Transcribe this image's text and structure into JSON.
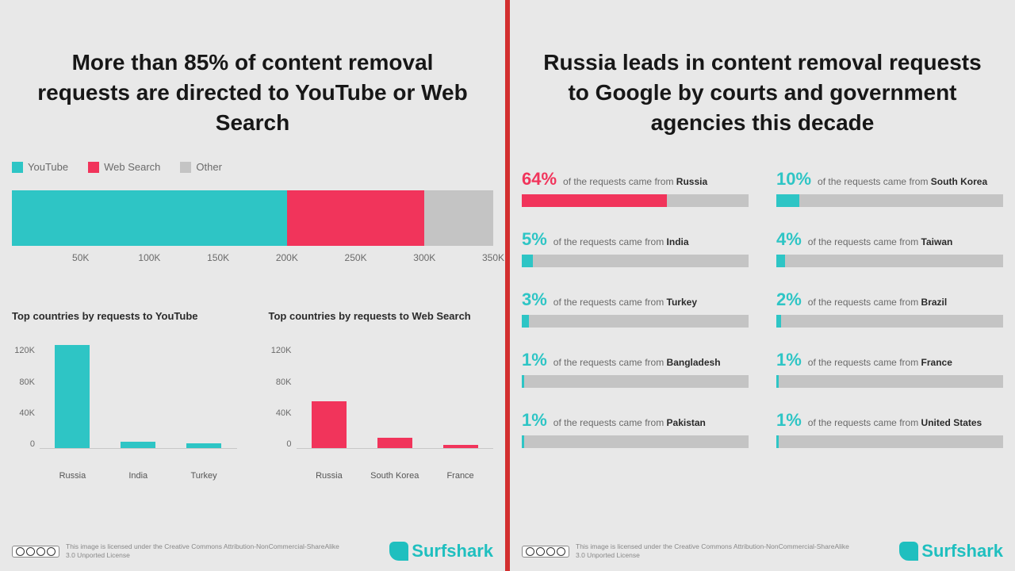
{
  "colors": {
    "youtube": "#2ec5c5",
    "websearch": "#f1345b",
    "other": "#c4c4c4",
    "track": "#c4c4c4",
    "bg": "#e8e8e8",
    "divider": "#d32f2f",
    "text_muted": "#6a6a6a",
    "brand": "#1fbfbf"
  },
  "left": {
    "title": "More than 85% of content removal requests are directed to YouTube or Web Search",
    "legend": [
      {
        "label": "YouTube",
        "colorKey": "youtube"
      },
      {
        "label": "Web Search",
        "colorKey": "websearch"
      },
      {
        "label": "Other",
        "colorKey": "other"
      }
    ],
    "stacked": {
      "type": "stacked-bar",
      "xmax": 350,
      "unit": "K",
      "segments": [
        {
          "value": 200,
          "colorKey": "youtube"
        },
        {
          "value": 100,
          "colorKey": "websearch"
        },
        {
          "value": 50,
          "colorKey": "other"
        }
      ],
      "xticks": [
        50,
        100,
        150,
        200,
        250,
        300,
        350
      ]
    },
    "mini": [
      {
        "title": "Top countries by requests to YouTube",
        "colorKey": "youtube",
        "ymax": 120,
        "yticks": [
          120,
          80,
          40,
          0
        ],
        "unit": "K",
        "bars": [
          {
            "label": "Russia",
            "value": 120
          },
          {
            "label": "India",
            "value": 8
          },
          {
            "label": "Turkey",
            "value": 6
          }
        ]
      },
      {
        "title": "Top countries by requests to Web Search",
        "colorKey": "websearch",
        "ymax": 120,
        "yticks": [
          120,
          80,
          40,
          0
        ],
        "unit": "K",
        "bars": [
          {
            "label": "Russia",
            "value": 55
          },
          {
            "label": "South Korea",
            "value": 12
          },
          {
            "label": "France",
            "value": 4
          }
        ]
      }
    ]
  },
  "right": {
    "title": "Russia leads in content removal requests to Google by courts and government agencies this decade",
    "label_prefix": "of the requests came from",
    "countries": [
      {
        "pct": 64,
        "name": "Russia",
        "colorKey": "websearch"
      },
      {
        "pct": 10,
        "name": "South Korea",
        "colorKey": "youtube"
      },
      {
        "pct": 5,
        "name": "India",
        "colorKey": "youtube"
      },
      {
        "pct": 4,
        "name": "Taiwan",
        "colorKey": "youtube"
      },
      {
        "pct": 3,
        "name": "Turkey",
        "colorKey": "youtube"
      },
      {
        "pct": 2,
        "name": "Brazil",
        "colorKey": "youtube"
      },
      {
        "pct": 1,
        "name": "Bangladesh",
        "colorKey": "youtube"
      },
      {
        "pct": 1,
        "name": "France",
        "colorKey": "youtube"
      },
      {
        "pct": 1,
        "name": "Pakistan",
        "colorKey": "youtube"
      },
      {
        "pct": 1,
        "name": "United States",
        "colorKey": "youtube"
      }
    ]
  },
  "footer": {
    "license_line1": "This image is licensed under the Creative Commons Attribution-NonCommercial-ShareAlike",
    "license_line2": "3.0 Unported License",
    "brand": "Surfshark"
  }
}
